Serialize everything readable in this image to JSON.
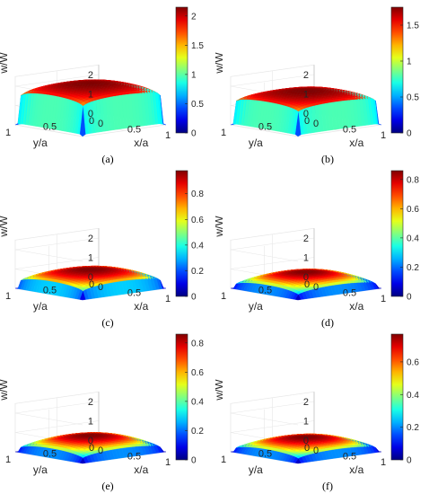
{
  "zlabel": "w/W",
  "xlabel": "x/a",
  "ylabel": "y/a",
  "chart_data": [
    {
      "type": "surface",
      "caption": "(a)",
      "xlabel": "x/a",
      "ylabel": "y/a",
      "zlabel": "w/W",
      "z_peak": 2.15,
      "z_ticks": [
        "0",
        "1",
        "2"
      ],
      "xy_ticks": [
        "0",
        "0.5",
        "1"
      ],
      "colorbar_range": [
        0,
        2.15
      ],
      "colorbar_ticks": [
        "0",
        "0.5",
        "1",
        "1.5",
        "2"
      ],
      "shape_exponent": 0.08
    },
    {
      "type": "surface",
      "caption": "(b)",
      "xlabel": "x/a",
      "ylabel": "y/a",
      "zlabel": "w/W",
      "z_peak": 1.75,
      "z_ticks": [
        "0",
        "1",
        "2"
      ],
      "xy_ticks": [
        "0",
        "0.5",
        "1"
      ],
      "colorbar_range": [
        0,
        1.75
      ],
      "colorbar_ticks": [
        "0",
        "0.5",
        "1",
        "1.5"
      ],
      "shape_exponent": 0.08
    },
    {
      "type": "surface",
      "caption": "(c)",
      "xlabel": "x/a",
      "ylabel": "y/a",
      "zlabel": "w/W",
      "z_peak": 0.98,
      "z_ticks": [
        "0",
        "1",
        "2"
      ],
      "xy_ticks": [
        "0",
        "0.5",
        "1"
      ],
      "colorbar_range": [
        0,
        0.98
      ],
      "colorbar_ticks": [
        "0",
        "0.2",
        "0.4",
        "0.6",
        "0.8"
      ],
      "shape_exponent": 0.2
    },
    {
      "type": "surface",
      "caption": "(d)",
      "xlabel": "x/a",
      "ylabel": "y/a",
      "zlabel": "w/W",
      "z_peak": 0.86,
      "z_ticks": [
        "0",
        "1",
        "2"
      ],
      "xy_ticks": [
        "0",
        "0.5",
        "1"
      ],
      "colorbar_range": [
        0,
        0.86
      ],
      "colorbar_ticks": [
        "0",
        "0.2",
        "0.4",
        "0.6",
        "0.8"
      ],
      "shape_exponent": 0.3
    },
    {
      "type": "surface",
      "caption": "(e)",
      "xlabel": "x/a",
      "ylabel": "y/a",
      "zlabel": "w/W",
      "z_peak": 0.86,
      "z_ticks": [
        "0",
        "1",
        "2"
      ],
      "xy_ticks": [
        "0",
        "0.5",
        "1"
      ],
      "colorbar_range": [
        0,
        0.86
      ],
      "colorbar_ticks": [
        "0",
        "0.2",
        "0.4",
        "0.6",
        "0.8"
      ],
      "shape_exponent": 0.3
    },
    {
      "type": "surface",
      "caption": "(f)",
      "xlabel": "x/a",
      "ylabel": "y/a",
      "zlabel": "w/W",
      "z_peak": 0.77,
      "z_ticks": [
        "0",
        "1",
        "2"
      ],
      "xy_ticks": [
        "0",
        "0.5",
        "1"
      ],
      "colorbar_range": [
        0,
        0.77
      ],
      "colorbar_ticks": [
        "0",
        "0.2",
        "0.4",
        "0.6"
      ],
      "shape_exponent": 0.3
    }
  ]
}
